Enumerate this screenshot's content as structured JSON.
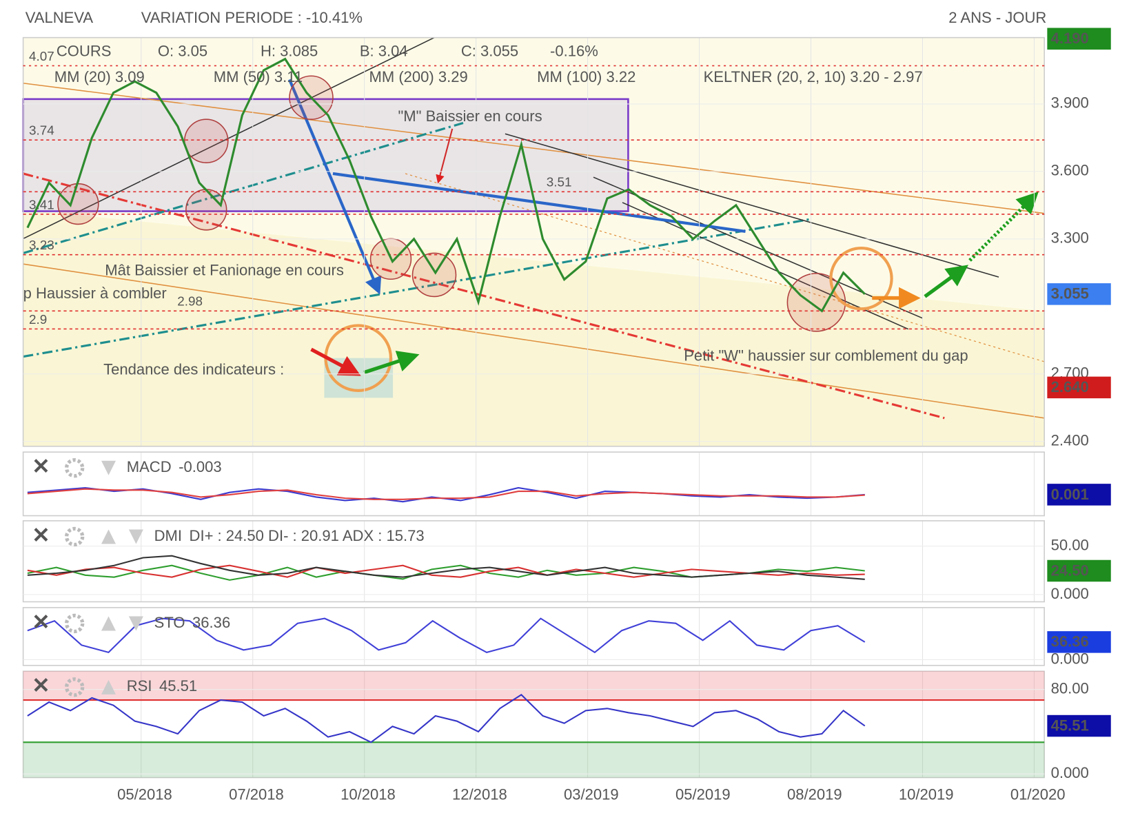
{
  "header": {
    "title": "VALNEVA",
    "variation": "VARIATION PERIODE : -10.41%",
    "period": "2 ANS - JOUR"
  },
  "x_axis_labels": [
    "05/2018",
    "07/2018",
    "10/2018",
    "12/2018",
    "03/2019",
    "05/2019",
    "08/2019",
    "10/2019",
    "01/2020"
  ],
  "chart_data": [
    {
      "type": "line",
      "legend": [
        {
          "text": "COURS",
          "color": "#cc2222"
        },
        {
          "text": "O: 3.05",
          "color": "#555555"
        },
        {
          "text": "H: 3.085",
          "color": "#555555"
        },
        {
          "text": "B: 3.04",
          "color": "#555555"
        },
        {
          "text": "C: 3.055",
          "color": "#555555"
        },
        {
          "text": "-0.16%",
          "color": "#e02020"
        },
        {
          "text": "MM (20) 3.09",
          "color": "#dd2222"
        },
        {
          "text": "MM (50) 3.11",
          "color": "#e8a020"
        },
        {
          "text": "MM (200) 3.29",
          "color": "#6abf4b"
        },
        {
          "text": "MM (100) 3.22",
          "color": "#3fc1d6"
        },
        {
          "text": "KELTNER (20, 2, 10) 3.20 - 2.97",
          "color": "#138a13"
        }
      ],
      "series": [
        {
          "color": "#2e8b2e",
          "values": [
            3.35,
            3.55,
            3.45,
            3.75,
            3.95,
            4.0,
            3.95,
            3.8,
            3.55,
            3.45,
            3.85,
            4.05,
            4.1,
            3.95,
            3.85,
            3.65,
            3.4,
            3.2,
            3.3,
            3.15,
            3.3,
            3.02,
            3.4,
            3.72,
            3.3,
            3.12,
            3.2,
            3.48,
            3.52,
            3.45,
            3.4,
            3.3,
            3.38,
            3.45,
            3.3,
            3.15,
            3.05,
            2.98,
            3.15,
            3.055
          ]
        }
      ],
      "ylim": [
        2.385,
        4.195
      ],
      "yticks": [
        {
          "value": 3.9,
          "label": "3.900"
        },
        {
          "value": 3.6,
          "label": "3.600"
        },
        {
          "value": 3.3,
          "label": "3.300"
        },
        {
          "value": 2.7,
          "label": "2.700"
        },
        {
          "value": 2.4,
          "label": "2.400"
        }
      ],
      "levels": [
        4.07,
        3.74,
        3.51,
        3.41,
        3.23,
        2.98,
        2.9
      ],
      "flags": [
        {
          "value": 4.19,
          "label": "4.190",
          "color": "#1e8c1e"
        },
        {
          "value": 3.055,
          "label": "3.055",
          "color": "#3b7ff0"
        },
        {
          "value": 2.64,
          "label": "2.640",
          "color": "#d01c1c"
        }
      ],
      "annotations": [
        {
          "text": "\"M\" Baissier en cours",
          "color": "#d02a2a"
        },
        {
          "text": "Mât Baissier et Fanionage en cours",
          "color": "#2a66c8"
        },
        {
          "text": "p Haussier à combler",
          "color": "#d02a2a"
        },
        {
          "text": "Tendance des indicateurs :",
          "color": "#2a66c8"
        },
        {
          "text": "Petit \"W\" haussier sur comblement du gap",
          "color": "#d02a2a"
        }
      ]
    },
    {
      "type": "line",
      "label": "MACD",
      "value_text": "-0.003",
      "series": [
        {
          "color": "#3a3ad0",
          "values": [
            0.02,
            0.04,
            0.06,
            0.03,
            0.05,
            0.01,
            -0.04,
            0.02,
            0.05,
            0.03,
            -0.02,
            -0.05,
            -0.03,
            -0.06,
            -0.02,
            -0.05,
            0.0,
            0.06,
            0.02,
            -0.03,
            0.03,
            0.02,
            0.01,
            -0.01,
            -0.02,
            0.0,
            -0.02,
            -0.03,
            -0.02,
            0.001
          ]
        },
        {
          "color": "#e04040",
          "values": [
            0.01,
            0.03,
            0.05,
            0.04,
            0.04,
            0.02,
            -0.02,
            0.0,
            0.03,
            0.04,
            0.0,
            -0.03,
            -0.04,
            -0.04,
            -0.03,
            -0.03,
            -0.02,
            0.03,
            0.03,
            -0.01,
            0.01,
            0.02,
            0.01,
            0.0,
            -0.01,
            -0.01,
            -0.01,
            -0.02,
            -0.02,
            -0.003
          ]
        }
      ],
      "ylim": [
        -0.15,
        0.15
      ],
      "flags": [
        {
          "value": 0.001,
          "label": "0.001",
          "color": "#0d0da8"
        }
      ]
    },
    {
      "type": "line",
      "label": "DMI",
      "value_text": "DI+ : 24.50 DI- : 20.91 ADX : 15.73",
      "series": [
        {
          "color": "#2e9e2e",
          "values": [
            22,
            28,
            20,
            18,
            25,
            30,
            22,
            15,
            20,
            28,
            18,
            24,
            20,
            16,
            26,
            30,
            22,
            18,
            25,
            20,
            22,
            28,
            24,
            18,
            20,
            22,
            26,
            24,
            28,
            24.5
          ]
        },
        {
          "color": "#d83030",
          "values": [
            25,
            20,
            26,
            28,
            22,
            18,
            26,
            30,
            24,
            18,
            28,
            22,
            26,
            30,
            20,
            18,
            24,
            28,
            20,
            26,
            22,
            18,
            22,
            26,
            24,
            22,
            20,
            22,
            20,
            20.91
          ]
        },
        {
          "color": "#333333",
          "values": [
            20,
            22,
            25,
            30,
            38,
            40,
            32,
            25,
            20,
            22,
            28,
            24,
            20,
            18,
            22,
            26,
            28,
            24,
            20,
            24,
            28,
            22,
            20,
            18,
            20,
            22,
            24,
            20,
            18,
            15.73
          ]
        }
      ],
      "ylim": [
        0,
        50
      ],
      "yticks": [
        {
          "value": 50,
          "label": "50.00"
        },
        {
          "value": 0,
          "label": "0.000"
        }
      ],
      "flags": [
        {
          "value": 24.5,
          "label": "24.50",
          "color": "#1e8c1e"
        }
      ]
    },
    {
      "type": "line",
      "label": "STO",
      "value_text": "36.36",
      "series": [
        {
          "color": "#4040d8",
          "values": [
            60,
            80,
            30,
            15,
            70,
            85,
            80,
            40,
            20,
            30,
            75,
            85,
            60,
            20,
            35,
            80,
            45,
            15,
            30,
            85,
            50,
            15,
            60,
            80,
            75,
            40,
            80,
            30,
            20,
            60,
            70,
            36.36
          ]
        }
      ],
      "ylim": [
        0,
        100
      ],
      "yticks": [
        {
          "value": 0,
          "label": "0.000"
        }
      ],
      "flags": [
        {
          "value": 36.36,
          "label": "36.36",
          "color": "#1a3de0"
        }
      ]
    },
    {
      "type": "line",
      "label": "RSI",
      "value_text": "45.51",
      "series": [
        {
          "color": "#3535c8",
          "values": [
            55,
            68,
            60,
            72,
            65,
            50,
            45,
            38,
            60,
            70,
            68,
            55,
            62,
            50,
            35,
            40,
            30,
            45,
            38,
            55,
            50,
            40,
            62,
            75,
            55,
            48,
            60,
            62,
            58,
            55,
            50,
            45,
            58,
            60,
            52,
            40,
            35,
            38,
            60,
            45.51
          ]
        }
      ],
      "ylim": [
        0,
        100
      ],
      "yticks": [
        {
          "value": 80,
          "label": "80.00"
        },
        {
          "value": 0,
          "label": "0.000"
        }
      ],
      "overbought": 70,
      "oversold": 30,
      "flags": [
        {
          "value": 45.51,
          "label": "45.51",
          "color": "#0d0da8"
        }
      ]
    }
  ]
}
